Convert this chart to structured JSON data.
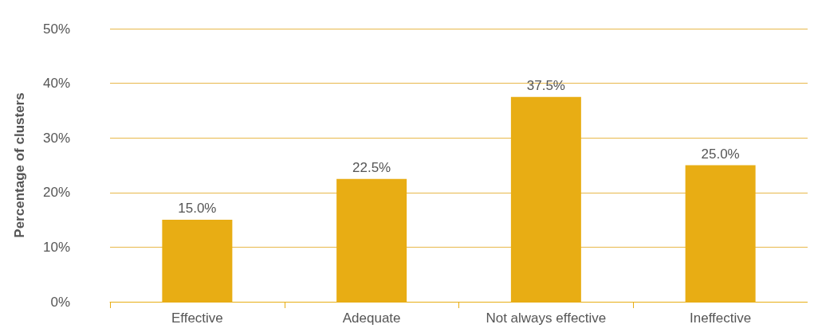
{
  "chart_data": {
    "type": "bar",
    "ylabel": "Percentage of clusters",
    "categories": [
      "Effective",
      "Adequate",
      "Not always effective",
      "Ineffective"
    ],
    "values": [
      15.0,
      22.5,
      37.5,
      25.0
    ],
    "value_labels": [
      "15.0%",
      "22.5%",
      "37.5%",
      "25.0%"
    ],
    "color": "#e8ad14",
    "ylim": [
      0,
      50
    ],
    "yticks": [
      {
        "value": 0,
        "label": "0%"
      },
      {
        "value": 10,
        "label": "10%"
      },
      {
        "value": 20,
        "label": "20%"
      },
      {
        "value": 30,
        "label": "30%"
      },
      {
        "value": 40,
        "label": "40%"
      },
      {
        "value": 50,
        "label": "50%"
      }
    ],
    "grid": "y"
  }
}
